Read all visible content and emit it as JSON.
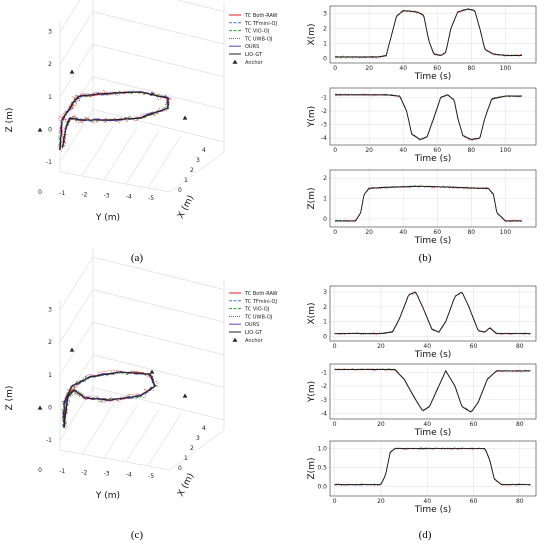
{
  "captions": [
    "(a)",
    "(b)",
    "(c)",
    "(d)"
  ],
  "legend": [
    {
      "label": "TC Both-RAW",
      "color": "#e41a1c",
      "dash": "none"
    },
    {
      "label": "TC TFmini-OJ",
      "color": "#3a7fd0",
      "dash": "3,1.5"
    },
    {
      "label": "TC VIO-OJ",
      "color": "#2ca02c",
      "dash": "3,1.5"
    },
    {
      "label": "TC UWB-OJ",
      "color": "#d62728",
      "dash": "1,1"
    },
    {
      "label": "OURS",
      "color": "#6a3fb5",
      "dash": "none"
    },
    {
      "label": "LIO-GT",
      "color": "#222222",
      "dash": "none"
    },
    {
      "label": "Anchor",
      "color": "#222222",
      "marker": "triangle"
    }
  ],
  "chart_data": [
    {
      "type": "line3d",
      "panel": "a",
      "zlabel": "Z (m)",
      "ylabel": "Y (m)",
      "xlabel": "X (m)",
      "ztick_labels": [
        "-1",
        "0",
        "1",
        "2",
        "3"
      ],
      "ytick_labels": [
        "0",
        "-1",
        "-2",
        "-3",
        "-4",
        "-5"
      ],
      "xtick_labels": [
        "0",
        "1",
        "2",
        "3",
        "4"
      ]
    },
    {
      "type": "line",
      "panel": "b",
      "xlabel": "Time (s)",
      "xtick_labels": [
        "0",
        "20",
        "40",
        "60",
        "80",
        "100"
      ],
      "xlim": [
        -3,
        118
      ],
      "subplots": [
        {
          "ylabel": "X(m)",
          "ylim": [
            -0.3,
            3.5
          ],
          "yticks": [
            0,
            1,
            2,
            3
          ],
          "x": [
            0,
            15,
            20,
            25,
            30,
            33,
            36,
            40,
            48,
            52,
            55,
            58,
            62,
            65,
            68,
            72,
            78,
            82,
            85,
            88,
            93,
            100,
            110
          ],
          "series": [
            {
              "name": "LIO-GT",
              "values": [
                0.1,
                0.1,
                0.1,
                0.1,
                0.2,
                1.5,
                2.8,
                3.2,
                3.1,
                2.9,
                1.2,
                0.3,
                0.2,
                0.4,
                2.0,
                3.1,
                3.3,
                3.2,
                2.0,
                0.6,
                0.3,
                0.2,
                0.2
              ]
            }
          ]
        },
        {
          "ylabel": "Y(m)",
          "ylim": [
            -4.5,
            -0.3
          ],
          "yticks": [
            -1,
            -2,
            -3,
            -4
          ],
          "x": [
            0,
            20,
            30,
            38,
            42,
            45,
            50,
            54,
            58,
            62,
            66,
            70,
            72,
            75,
            80,
            85,
            88,
            92,
            100,
            110
          ],
          "series": [
            {
              "name": "LIO-GT",
              "values": [
                -0.8,
                -0.8,
                -0.8,
                -0.9,
                -2.0,
                -3.7,
                -4.1,
                -3.9,
                -2.5,
                -1.0,
                -0.8,
                -1.2,
                -2.5,
                -3.8,
                -4.1,
                -4.0,
                -2.5,
                -1.1,
                -0.9,
                -0.9
              ]
            }
          ]
        },
        {
          "ylabel": "Z(m)",
          "ylim": [
            -0.4,
            2.4
          ],
          "yticks": [
            0,
            1,
            2
          ],
          "x": [
            0,
            12,
            15,
            17,
            20,
            30,
            50,
            70,
            85,
            90,
            93,
            95,
            100,
            110
          ],
          "series": [
            {
              "name": "LIO-GT",
              "values": [
                -0.1,
                -0.1,
                0.3,
                1.2,
                1.5,
                1.55,
                1.6,
                1.55,
                1.5,
                1.5,
                1.2,
                0.3,
                -0.1,
                -0.1
              ]
            }
          ]
        }
      ]
    },
    {
      "type": "line3d",
      "panel": "c",
      "zlabel": "Z (m)",
      "ylabel": "Y (m)",
      "xlabel": "X (m)",
      "ztick_labels": [
        "-1",
        "0",
        "1",
        "2",
        "3"
      ],
      "ytick_labels": [
        "0",
        "-1",
        "-2",
        "-3",
        "-4",
        "-5"
      ],
      "xtick_labels": [
        "0",
        "1",
        "2",
        "3",
        "4"
      ]
    },
    {
      "type": "line",
      "panel": "d",
      "xlabel": "Time (s)",
      "xtick_labels": [
        "0",
        "20",
        "40",
        "60",
        "80"
      ],
      "xlim": [
        -2,
        87
      ],
      "subplots": [
        {
          "ylabel": "X(m)",
          "ylim": [
            -0.3,
            3.4
          ],
          "yticks": [
            0,
            1,
            2,
            3
          ],
          "x": [
            0,
            20,
            25,
            28,
            32,
            35,
            38,
            42,
            45,
            48,
            52,
            55,
            58,
            62,
            65,
            67,
            70,
            80,
            85
          ],
          "series": [
            {
              "name": "LIO-GT",
              "values": [
                0.2,
                0.2,
                0.3,
                1.2,
                2.8,
                3.0,
                2.0,
                0.5,
                0.3,
                1.0,
                2.7,
                3.0,
                2.0,
                0.4,
                0.3,
                0.6,
                0.2,
                0.2,
                0.2
              ]
            }
          ]
        },
        {
          "ylabel": "Y(m)",
          "ylim": [
            -4.4,
            -0.4
          ],
          "yticks": [
            -1,
            -2,
            -3,
            -4
          ],
          "x": [
            0,
            20,
            26,
            30,
            35,
            38,
            41,
            45,
            48,
            52,
            55,
            59,
            62,
            66,
            70,
            80,
            85
          ],
          "series": [
            {
              "name": "LIO-GT",
              "values": [
                -0.8,
                -0.8,
                -0.8,
                -1.5,
                -3.0,
                -3.8,
                -3.5,
                -2.0,
                -0.9,
                -2.0,
                -3.5,
                -3.9,
                -3.2,
                -1.5,
                -0.9,
                -0.9,
                -0.9
              ]
            }
          ]
        },
        {
          "ylabel": "Z(m)",
          "ylim": [
            -0.25,
            1.2
          ],
          "yticks": [
            0.0,
            0.5,
            1.0
          ],
          "x": [
            0,
            20,
            22,
            24,
            26,
            30,
            40,
            50,
            60,
            65,
            67,
            69,
            72,
            80,
            85
          ],
          "series": [
            {
              "name": "LIO-GT",
              "values": [
                0.05,
                0.05,
                0.3,
                0.9,
                1.0,
                1.0,
                1.0,
                1.0,
                1.0,
                1.0,
                0.7,
                0.2,
                0.05,
                0.05,
                0.05
              ]
            }
          ]
        }
      ]
    }
  ]
}
